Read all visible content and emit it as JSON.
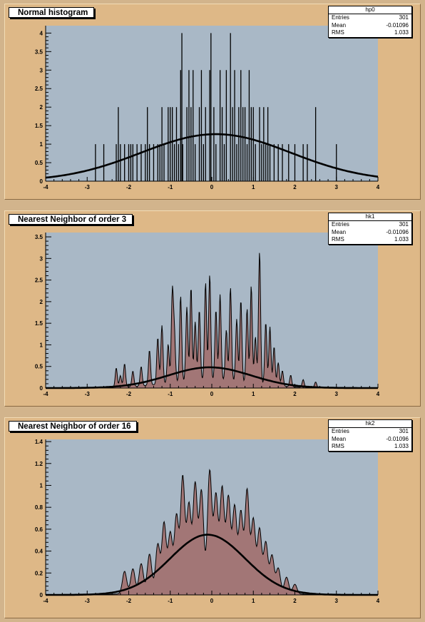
{
  "chart_data": [
    {
      "type": "bar",
      "title": "Normal histogram",
      "stats": {
        "name": "hp0",
        "entries_label": "Entries",
        "entries": "301",
        "mean_label": "Mean",
        "mean": "-0.01096",
        "rms_label": "RMS",
        "rms": "1.033"
      },
      "xlim": [
        -4,
        4
      ],
      "ylim": [
        0,
        4.2
      ],
      "x_ticks": [
        "-4",
        "-3",
        "-2",
        "-1",
        "0",
        "1",
        "2",
        "3",
        "4"
      ],
      "y_ticks": [
        "0",
        "0.5",
        "1",
        "1.5",
        "2",
        "2.5",
        "3",
        "3.5",
        "4"
      ],
      "y_tick_values": [
        0,
        0.5,
        1,
        1.5,
        2,
        2.5,
        3,
        3.5,
        4
      ],
      "fit": {
        "function": "gaus",
        "amplitude": 1.27,
        "mean": 0.1,
        "sigma": 1.8
      },
      "spikes": [
        [
          -2.8,
          1
        ],
        [
          -2.6,
          1
        ],
        [
          -2.3,
          1
        ],
        [
          -2.25,
          2
        ],
        [
          -2.2,
          1
        ],
        [
          -2.1,
          1
        ],
        [
          -2.0,
          1
        ],
        [
          -1.95,
          1
        ],
        [
          -1.9,
          1
        ],
        [
          -1.8,
          1
        ],
        [
          -1.7,
          1
        ],
        [
          -1.6,
          1
        ],
        [
          -1.55,
          2
        ],
        [
          -1.5,
          1
        ],
        [
          -1.4,
          1
        ],
        [
          -1.3,
          1
        ],
        [
          -1.25,
          1
        ],
        [
          -1.2,
          2
        ],
        [
          -1.15,
          1
        ],
        [
          -1.05,
          2
        ],
        [
          -1.0,
          2
        ],
        [
          -0.95,
          2
        ],
        [
          -0.9,
          1
        ],
        [
          -0.85,
          2
        ],
        [
          -0.8,
          1
        ],
        [
          -0.75,
          3
        ],
        [
          -0.72,
          4
        ],
        [
          -0.7,
          1
        ],
        [
          -0.6,
          2
        ],
        [
          -0.55,
          3
        ],
        [
          -0.5,
          2
        ],
        [
          -0.45,
          3
        ],
        [
          -0.4,
          1
        ],
        [
          -0.3,
          2
        ],
        [
          -0.25,
          3
        ],
        [
          -0.2,
          1
        ],
        [
          -0.15,
          2
        ],
        [
          -0.05,
          3
        ],
        [
          -0.02,
          4
        ],
        [
          0.05,
          2
        ],
        [
          0.1,
          1
        ],
        [
          0.2,
          3
        ],
        [
          0.25,
          2
        ],
        [
          0.3,
          1
        ],
        [
          0.35,
          3
        ],
        [
          0.45,
          4
        ],
        [
          0.5,
          2
        ],
        [
          0.55,
          3
        ],
        [
          0.6,
          1
        ],
        [
          0.65,
          2
        ],
        [
          0.7,
          3
        ],
        [
          0.75,
          2
        ],
        [
          0.8,
          2
        ],
        [
          0.85,
          1
        ],
        [
          0.9,
          3
        ],
        [
          0.95,
          2
        ],
        [
          1.0,
          2
        ],
        [
          1.05,
          1
        ],
        [
          1.15,
          2
        ],
        [
          1.2,
          1
        ],
        [
          1.25,
          2
        ],
        [
          1.3,
          1
        ],
        [
          1.35,
          2
        ],
        [
          1.4,
          1
        ],
        [
          1.5,
          1
        ],
        [
          1.6,
          1
        ],
        [
          1.7,
          1
        ],
        [
          1.85,
          1
        ],
        [
          2.0,
          1
        ],
        [
          2.2,
          1
        ],
        [
          2.3,
          1
        ],
        [
          2.5,
          2
        ],
        [
          3.0,
          1
        ]
      ]
    },
    {
      "type": "area",
      "title": "Nearest Neighbor of order 3",
      "stats": {
        "name": "hk1",
        "entries_label": "Entries",
        "entries": "301",
        "mean_label": "Mean",
        "mean": "-0.01096",
        "rms_label": "RMS",
        "rms": "1.033"
      },
      "xlim": [
        -4,
        4
      ],
      "ylim": [
        0,
        3.6
      ],
      "x_ticks": [
        "-4",
        "-3",
        "-2",
        "-1",
        "0",
        "1",
        "2",
        "3",
        "4"
      ],
      "y_ticks": [
        "0",
        "0.5",
        "1",
        "1.5",
        "2",
        "2.5",
        "3",
        "3.5"
      ],
      "y_tick_values": [
        0,
        0.5,
        1,
        1.5,
        2,
        2.5,
        3,
        3.5
      ],
      "fit": {
        "function": "gaus",
        "amplitude": 0.48,
        "mean": -0.05,
        "sigma": 1.0
      },
      "spikes": [
        [
          -2.3,
          0.5
        ],
        [
          -2.2,
          0.3
        ],
        [
          -2.1,
          0.6
        ],
        [
          -1.9,
          0.4
        ],
        [
          -1.7,
          0.5
        ],
        [
          -1.5,
          0.9
        ],
        [
          -1.3,
          1.2
        ],
        [
          -1.2,
          1.5
        ],
        [
          -1.05,
          1.0
        ],
        [
          -0.95,
          2.3
        ],
        [
          -0.9,
          1.2
        ],
        [
          -0.75,
          2.2
        ],
        [
          -0.6,
          1.9
        ],
        [
          -0.5,
          2.4
        ],
        [
          -0.4,
          1.5
        ],
        [
          -0.3,
          1.8
        ],
        [
          -0.15,
          2.5
        ],
        [
          -0.05,
          2.7
        ],
        [
          0.1,
          1.8
        ],
        [
          0.2,
          2.2
        ],
        [
          0.35,
          1.3
        ],
        [
          0.45,
          2.4
        ],
        [
          0.6,
          1.6
        ],
        [
          0.7,
          2.1
        ],
        [
          0.85,
          1.9
        ],
        [
          0.95,
          2.5
        ],
        [
          1.05,
          1.2
        ],
        [
          1.15,
          3.4
        ],
        [
          1.3,
          1.6
        ],
        [
          1.4,
          1.5
        ],
        [
          1.5,
          1.0
        ],
        [
          1.6,
          0.6
        ],
        [
          1.7,
          0.4
        ],
        [
          1.9,
          0.3
        ],
        [
          2.2,
          0.2
        ],
        [
          2.5,
          0.15
        ]
      ]
    },
    {
      "type": "area",
      "title": "Nearest Neighbor of order 16",
      "stats": {
        "name": "hk2",
        "entries_label": "Entries",
        "entries": "301",
        "mean_label": "Mean",
        "mean": "-0.01096",
        "rms_label": "RMS",
        "rms": "1.033"
      },
      "xlim": [
        -4,
        4
      ],
      "ylim": [
        0,
        1.42
      ],
      "x_ticks": [
        "-4",
        "-3",
        "-2",
        "-1",
        "0",
        "1",
        "2",
        "3",
        "4"
      ],
      "y_ticks": [
        "0",
        "0.2",
        "0.4",
        "0.6",
        "0.8",
        "1",
        "1.2",
        "1.4"
      ],
      "y_tick_values": [
        0,
        0.2,
        0.4,
        0.6,
        0.8,
        1.0,
        1.2,
        1.4
      ],
      "fit": {
        "function": "gaus",
        "amplitude": 0.55,
        "mean": -0.1,
        "sigma": 0.9
      },
      "spikes": [
        [
          -2.1,
          0.28
        ],
        [
          -1.9,
          0.3
        ],
        [
          -1.7,
          0.35
        ],
        [
          -1.5,
          0.45
        ],
        [
          -1.3,
          0.55
        ],
        [
          -1.15,
          0.8
        ],
        [
          -1.0,
          0.65
        ],
        [
          -0.85,
          0.85
        ],
        [
          -0.7,
          1.32
        ],
        [
          -0.55,
          0.95
        ],
        [
          -0.4,
          1.2
        ],
        [
          -0.25,
          1.1
        ],
        [
          -0.05,
          1.35
        ],
        [
          0.1,
          1.05
        ],
        [
          0.25,
          1.15
        ],
        [
          0.4,
          1.05
        ],
        [
          0.55,
          0.95
        ],
        [
          0.7,
          0.9
        ],
        [
          0.85,
          1.2
        ],
        [
          1.0,
          0.85
        ],
        [
          1.15,
          0.75
        ],
        [
          1.3,
          0.6
        ],
        [
          1.45,
          0.45
        ],
        [
          1.6,
          0.3
        ],
        [
          1.8,
          0.2
        ],
        [
          2.0,
          0.12
        ]
      ]
    }
  ]
}
